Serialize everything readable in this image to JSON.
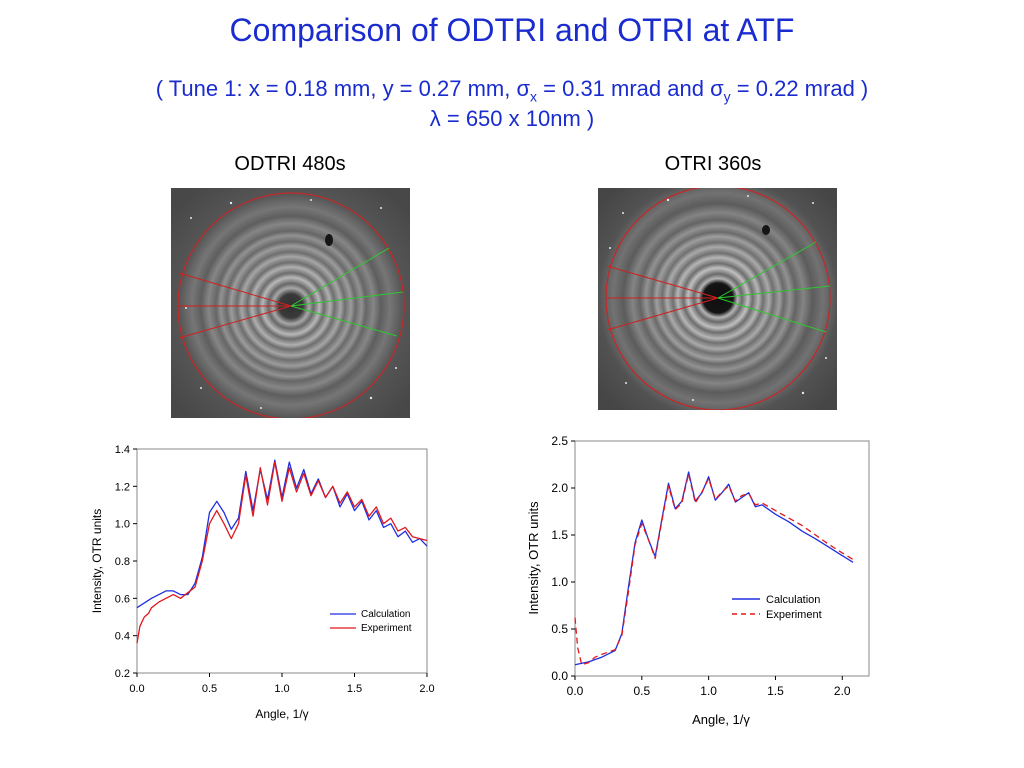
{
  "slide": {
    "title": "Comparison of ODTRI and OTRI at ATF",
    "subtitle_line1": {
      "before": "( Tune 1:  x = 0.18 mm, y = 0.27 mm, ",
      "sigma": "σ",
      "sub_x": "x",
      "mid": " = 0.31 mrad and ",
      "sub_y": "y",
      "after": " = 0.22 mrad )"
    },
    "subtitle_line2": {
      "lambda": "λ",
      "text": " = 650 x 10nm )"
    }
  },
  "images": [
    {
      "label": "ODTRI 480s"
    },
    {
      "label": "OTRI 360s"
    }
  ],
  "colors": {
    "title": "#1a2ccf",
    "calculation": "#1f2fe0",
    "experiment": "#e0181d",
    "overlay_circle": "#c22a2a",
    "overlay_red_lines": "#d02020",
    "overlay_green_lines": "#2ec82e"
  },
  "chart_data": [
    {
      "type": "line",
      "xlabel": "Angle, 1/γ",
      "ylabel": "Intensity, OTR units",
      "xlim": [
        0,
        2.0
      ],
      "ylim": [
        0.2,
        1.4
      ],
      "xticks": [
        "0.0",
        "0.5",
        "1.0",
        "1.5",
        "2.0"
      ],
      "yticks": [
        "0.2",
        "0.4",
        "0.6",
        "0.8",
        "1.0",
        "1.2",
        "1.4"
      ],
      "legend_position": "bottom-right",
      "series": [
        {
          "name": "Calculation",
          "style": "solid",
          "x": [
            0,
            0.1,
            0.2,
            0.25,
            0.3,
            0.35,
            0.4,
            0.45,
            0.5,
            0.55,
            0.6,
            0.65,
            0.7,
            0.75,
            0.8,
            0.85,
            0.9,
            0.95,
            1.0,
            1.05,
            1.1,
            1.15,
            1.2,
            1.25,
            1.3,
            1.35,
            1.4,
            1.45,
            1.5,
            1.55,
            1.6,
            1.65,
            1.7,
            1.75,
            1.8,
            1.85,
            1.9,
            1.95,
            2.0
          ],
          "y": [
            0.55,
            0.6,
            0.64,
            0.64,
            0.62,
            0.62,
            0.68,
            0.82,
            1.06,
            1.12,
            1.06,
            0.97,
            1.03,
            1.28,
            1.07,
            1.29,
            1.13,
            1.34,
            1.14,
            1.33,
            1.19,
            1.29,
            1.16,
            1.24,
            1.14,
            1.2,
            1.09,
            1.16,
            1.07,
            1.12,
            1.02,
            1.07,
            0.98,
            1.0,
            0.93,
            0.96,
            0.9,
            0.92,
            0.88
          ]
        },
        {
          "name": "Experiment",
          "style": "solid",
          "x": [
            0,
            0.02,
            0.05,
            0.08,
            0.1,
            0.15,
            0.2,
            0.25,
            0.3,
            0.35,
            0.4,
            0.45,
            0.5,
            0.55,
            0.6,
            0.65,
            0.7,
            0.75,
            0.8,
            0.85,
            0.9,
            0.95,
            1.0,
            1.05,
            1.1,
            1.15,
            1.2,
            1.25,
            1.3,
            1.35,
            1.4,
            1.45,
            1.5,
            1.55,
            1.6,
            1.65,
            1.7,
            1.75,
            1.8,
            1.85,
            1.9,
            1.95,
            2.0
          ],
          "y": [
            0.36,
            0.45,
            0.5,
            0.52,
            0.55,
            0.58,
            0.6,
            0.62,
            0.6,
            0.63,
            0.66,
            0.8,
            1.0,
            1.07,
            1.0,
            0.92,
            1.0,
            1.26,
            1.04,
            1.3,
            1.1,
            1.33,
            1.12,
            1.3,
            1.17,
            1.27,
            1.15,
            1.23,
            1.14,
            1.2,
            1.11,
            1.17,
            1.09,
            1.13,
            1.04,
            1.09,
            1.0,
            1.03,
            0.96,
            0.98,
            0.93,
            0.92,
            0.91
          ]
        }
      ]
    },
    {
      "type": "line",
      "xlabel": "Angle, 1/γ",
      "ylabel": "Intensity, OTR units",
      "xlim": [
        0,
        2.2
      ],
      "ylim": [
        0,
        2.5
      ],
      "xticks": [
        "0.0",
        "0.5",
        "1.0",
        "1.5",
        "2.0"
      ],
      "yticks": [
        "0.0",
        "0.5",
        "1.0",
        "1.5",
        "2.0",
        "2.5"
      ],
      "legend_position": "right",
      "series": [
        {
          "name": "Calculation",
          "style": "solid",
          "x": [
            0,
            0.1,
            0.2,
            0.3,
            0.35,
            0.4,
            0.45,
            0.5,
            0.55,
            0.6,
            0.65,
            0.7,
            0.75,
            0.8,
            0.85,
            0.9,
            0.95,
            1.0,
            1.05,
            1.1,
            1.15,
            1.2,
            1.25,
            1.3,
            1.35,
            1.4,
            1.5,
            1.6,
            1.7,
            1.8,
            1.9,
            2.0,
            2.08
          ],
          "y": [
            0.12,
            0.15,
            0.2,
            0.27,
            0.45,
            0.95,
            1.42,
            1.66,
            1.45,
            1.27,
            1.67,
            2.05,
            1.78,
            1.86,
            2.17,
            1.86,
            1.95,
            2.12,
            1.87,
            1.95,
            2.04,
            1.85,
            1.9,
            1.95,
            1.8,
            1.82,
            1.72,
            1.64,
            1.54,
            1.46,
            1.37,
            1.28,
            1.21
          ]
        },
        {
          "name": "Experiment",
          "style": "dashed",
          "x": [
            0,
            0.02,
            0.05,
            0.1,
            0.15,
            0.2,
            0.3,
            0.35,
            0.4,
            0.45,
            0.5,
            0.55,
            0.6,
            0.65,
            0.7,
            0.75,
            0.8,
            0.85,
            0.9,
            0.95,
            1.0,
            1.05,
            1.1,
            1.15,
            1.2,
            1.25,
            1.3,
            1.35,
            1.4,
            1.5,
            1.6,
            1.7,
            1.8,
            1.9,
            2.0,
            2.08
          ],
          "y": [
            0.62,
            0.3,
            0.12,
            0.14,
            0.2,
            0.23,
            0.28,
            0.43,
            0.9,
            1.4,
            1.62,
            1.45,
            1.25,
            1.65,
            2.02,
            1.77,
            1.84,
            2.15,
            1.84,
            1.96,
            2.1,
            1.88,
            1.96,
            2.02,
            1.86,
            1.92,
            1.94,
            1.82,
            1.84,
            1.76,
            1.68,
            1.6,
            1.5,
            1.4,
            1.31,
            1.24
          ]
        }
      ]
    }
  ]
}
